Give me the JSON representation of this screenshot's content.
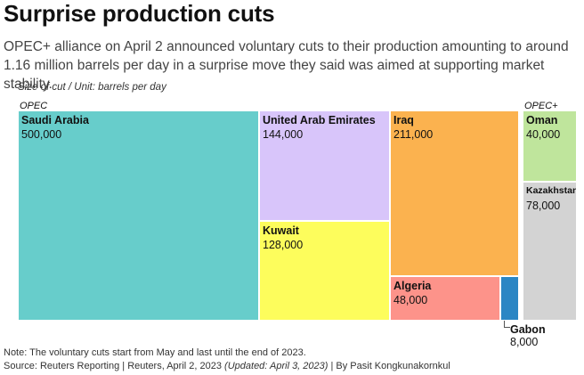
{
  "title": "Surprise production cuts",
  "subtitle": "OPEC+ alliance on April 2 announced voluntary cuts to their production amounting to around 1.16 million barrels per day in a surprise move they said was aimed at supporting market stability.",
  "unit_label": "Size of cut / Unit: barrels per day",
  "note": "Note: The voluntary cuts start from May and last until the end of 2023.",
  "source": {
    "text": "Source: Reuters Reporting | Reuters, April 2, 2023 ",
    "updated": "(Updated: April 3, 2023)",
    "byline": " | By Pasit Kongkunakornkul"
  },
  "colors": {
    "saudi": "#67cdcb",
    "uae": "#d8c5fa",
    "kuwait": "#fdfd5c",
    "iraq": "#fbb24f",
    "algeria": "#fd938a",
    "gabon": "#2b86c4",
    "oman": "#bfe59c",
    "kazakhstan": "#d3d3d3"
  },
  "chart_data": {
    "type": "treemap",
    "title": "Surprise production cuts",
    "unit": "barrels per day",
    "groups": [
      {
        "name": "OPEC",
        "items": [
          {
            "name": "Saudi Arabia",
            "value": 500000,
            "value_label": "500,000"
          },
          {
            "name": "United Arab Emirates",
            "value": 144000,
            "value_label": "144,000"
          },
          {
            "name": "Kuwait",
            "value": 128000,
            "value_label": "128,000"
          },
          {
            "name": "Iraq",
            "value": 211000,
            "value_label": "211,000"
          },
          {
            "name": "Algeria",
            "value": 48000,
            "value_label": "48,000"
          },
          {
            "name": "Gabon",
            "value": 8000,
            "value_label": "8,000"
          }
        ]
      },
      {
        "name": "OPEC+",
        "items": [
          {
            "name": "Oman",
            "value": 40000,
            "value_label": "40,000"
          },
          {
            "name": "Kazakhstan",
            "value": 78000,
            "value_label": "78,000"
          }
        ]
      }
    ]
  }
}
